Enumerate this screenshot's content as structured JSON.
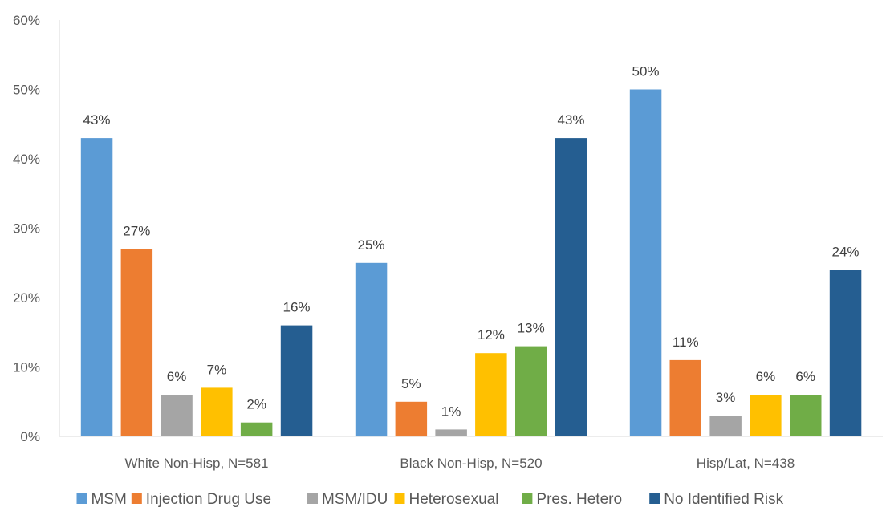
{
  "chart_data": {
    "type": "bar",
    "title": "",
    "xlabel": "",
    "ylabel": "",
    "ylim": [
      0,
      60
    ],
    "y_ticks": [
      0,
      10,
      20,
      30,
      40,
      50,
      60
    ],
    "y_tick_format": "percent",
    "grid": false,
    "legend_position": "bottom",
    "categories": [
      "White Non-Hisp, N=581",
      "Black Non-Hisp, N=520",
      "Hisp/Lat, N=438"
    ],
    "series": [
      {
        "name": "MSM",
        "color": "#5B9BD5",
        "values": [
          43,
          25,
          50
        ],
        "labels": [
          "43%",
          "25%",
          "50%"
        ]
      },
      {
        "name": "Injection Drug Use",
        "color": "#ED7D31",
        "values": [
          27,
          5,
          11
        ],
        "labels": [
          "27%",
          "5%",
          "11%"
        ]
      },
      {
        "name": "MSM/IDU",
        "color": "#A5A5A5",
        "values": [
          6,
          1,
          3
        ],
        "labels": [
          "6%",
          "1%",
          "3%"
        ]
      },
      {
        "name": "Heterosexual",
        "color": "#FFC000",
        "values": [
          7,
          12,
          6
        ],
        "labels": [
          "7%",
          "12%",
          "6%"
        ]
      },
      {
        "name": "Pres. Hetero",
        "color": "#70AD47",
        "values": [
          2,
          13,
          6
        ],
        "labels": [
          "2%",
          "13%",
          "6%"
        ]
      },
      {
        "name": "No Identified Risk",
        "color": "#255E91",
        "values": [
          16,
          43,
          24
        ],
        "labels": [
          "16%",
          "43%",
          "24%"
        ]
      }
    ]
  }
}
